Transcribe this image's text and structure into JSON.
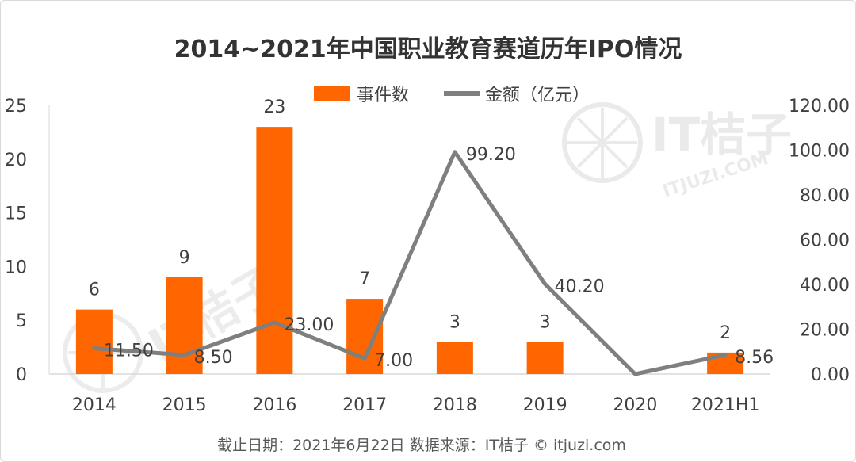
{
  "chart_data": {
    "type": "bar",
    "title": "2014~2021年中国职业教育赛道历年IPO情况",
    "categories": [
      "2014",
      "2015",
      "2016",
      "2017",
      "2018",
      "2019",
      "2020",
      "2021H1"
    ],
    "series": [
      {
        "name": "事件数",
        "type": "bar",
        "axis": "left",
        "color": "#FF6600",
        "values": [
          6,
          9,
          23,
          7,
          3,
          3,
          0,
          2
        ],
        "labels": [
          "6",
          "9",
          "23",
          "7",
          "3",
          "3",
          "",
          "2"
        ]
      },
      {
        "name": "金额（亿元）",
        "type": "line",
        "axis": "right",
        "color": "#7F7F7F",
        "values": [
          11.5,
          8.5,
          23.0,
          7.0,
          99.2,
          40.2,
          0,
          8.56
        ],
        "labels": [
          "11.50",
          "8.50",
          "23.00",
          "7.00",
          "99.20",
          "40.20",
          "",
          "8.56"
        ]
      }
    ],
    "left_axis": {
      "min": 0,
      "max": 25,
      "ticks": [
        "0",
        "5",
        "10",
        "15",
        "20",
        "25"
      ]
    },
    "right_axis": {
      "min": 0,
      "max": 120,
      "ticks": [
        "0.00",
        "20.00",
        "40.00",
        "60.00",
        "80.00",
        "100.00",
        "120.00"
      ]
    },
    "grid": false,
    "legend_position": "top"
  },
  "footer": "截止日期：2021年6月22日     数据来源：IT桔子 © itjuzi.com",
  "watermark": {
    "text": "IT桔子",
    "sub": "ITJUZI.COM",
    "icon": "orange-slice-icon"
  }
}
